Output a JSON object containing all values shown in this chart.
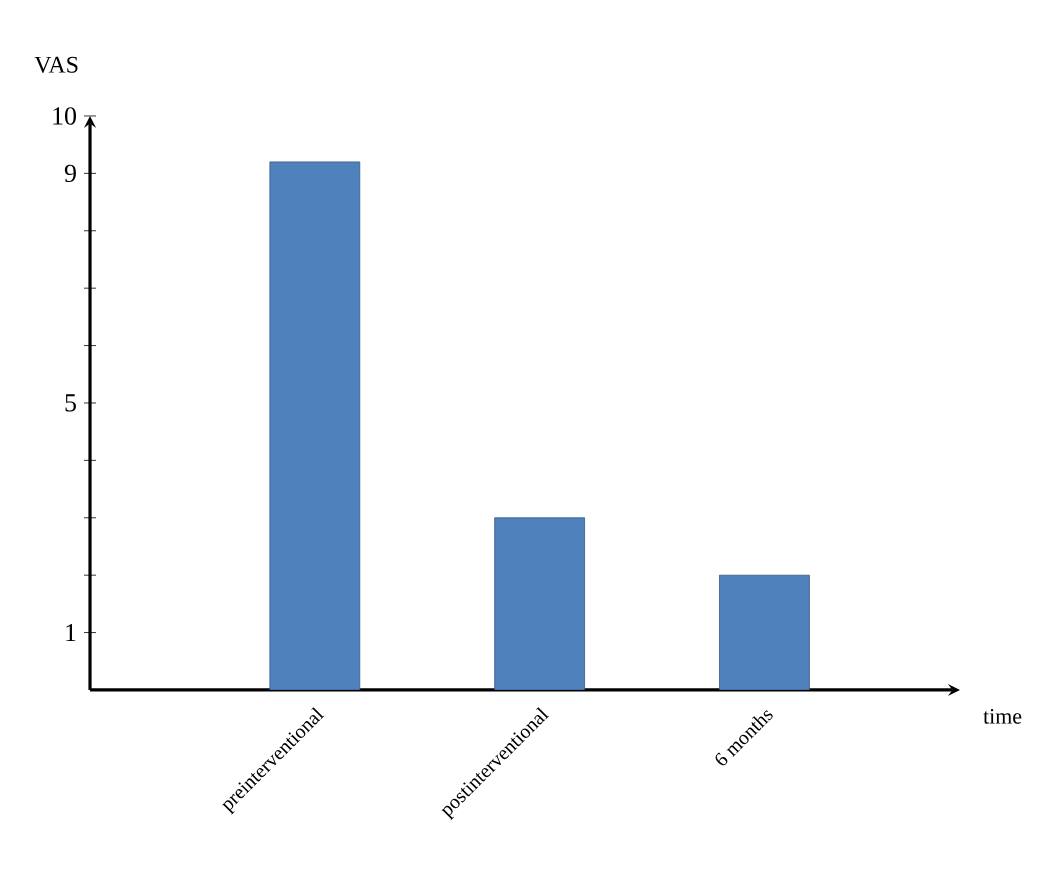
{
  "chart_data": {
    "type": "bar",
    "xlabel": "time",
    "ylabel": "VAS",
    "categories": [
      "preinterventional",
      "postinterventional",
      "6 months"
    ],
    "values": [
      9.2,
      3,
      2
    ],
    "color": "#4f81bd",
    "ylim": [
      0,
      10
    ],
    "yticks": [
      {
        "value": 1,
        "label": "1"
      },
      {
        "value": 2,
        "label": null
      },
      {
        "value": 3,
        "label": null
      },
      {
        "value": 4,
        "label": null
      },
      {
        "value": 5,
        "label": "5"
      },
      {
        "value": 6,
        "label": null
      },
      {
        "value": 7,
        "label": null
      },
      {
        "value": 8,
        "label": null
      },
      {
        "value": 9,
        "label": "9"
      },
      {
        "value": 10,
        "label": "10"
      }
    ],
    "grid": false
  }
}
